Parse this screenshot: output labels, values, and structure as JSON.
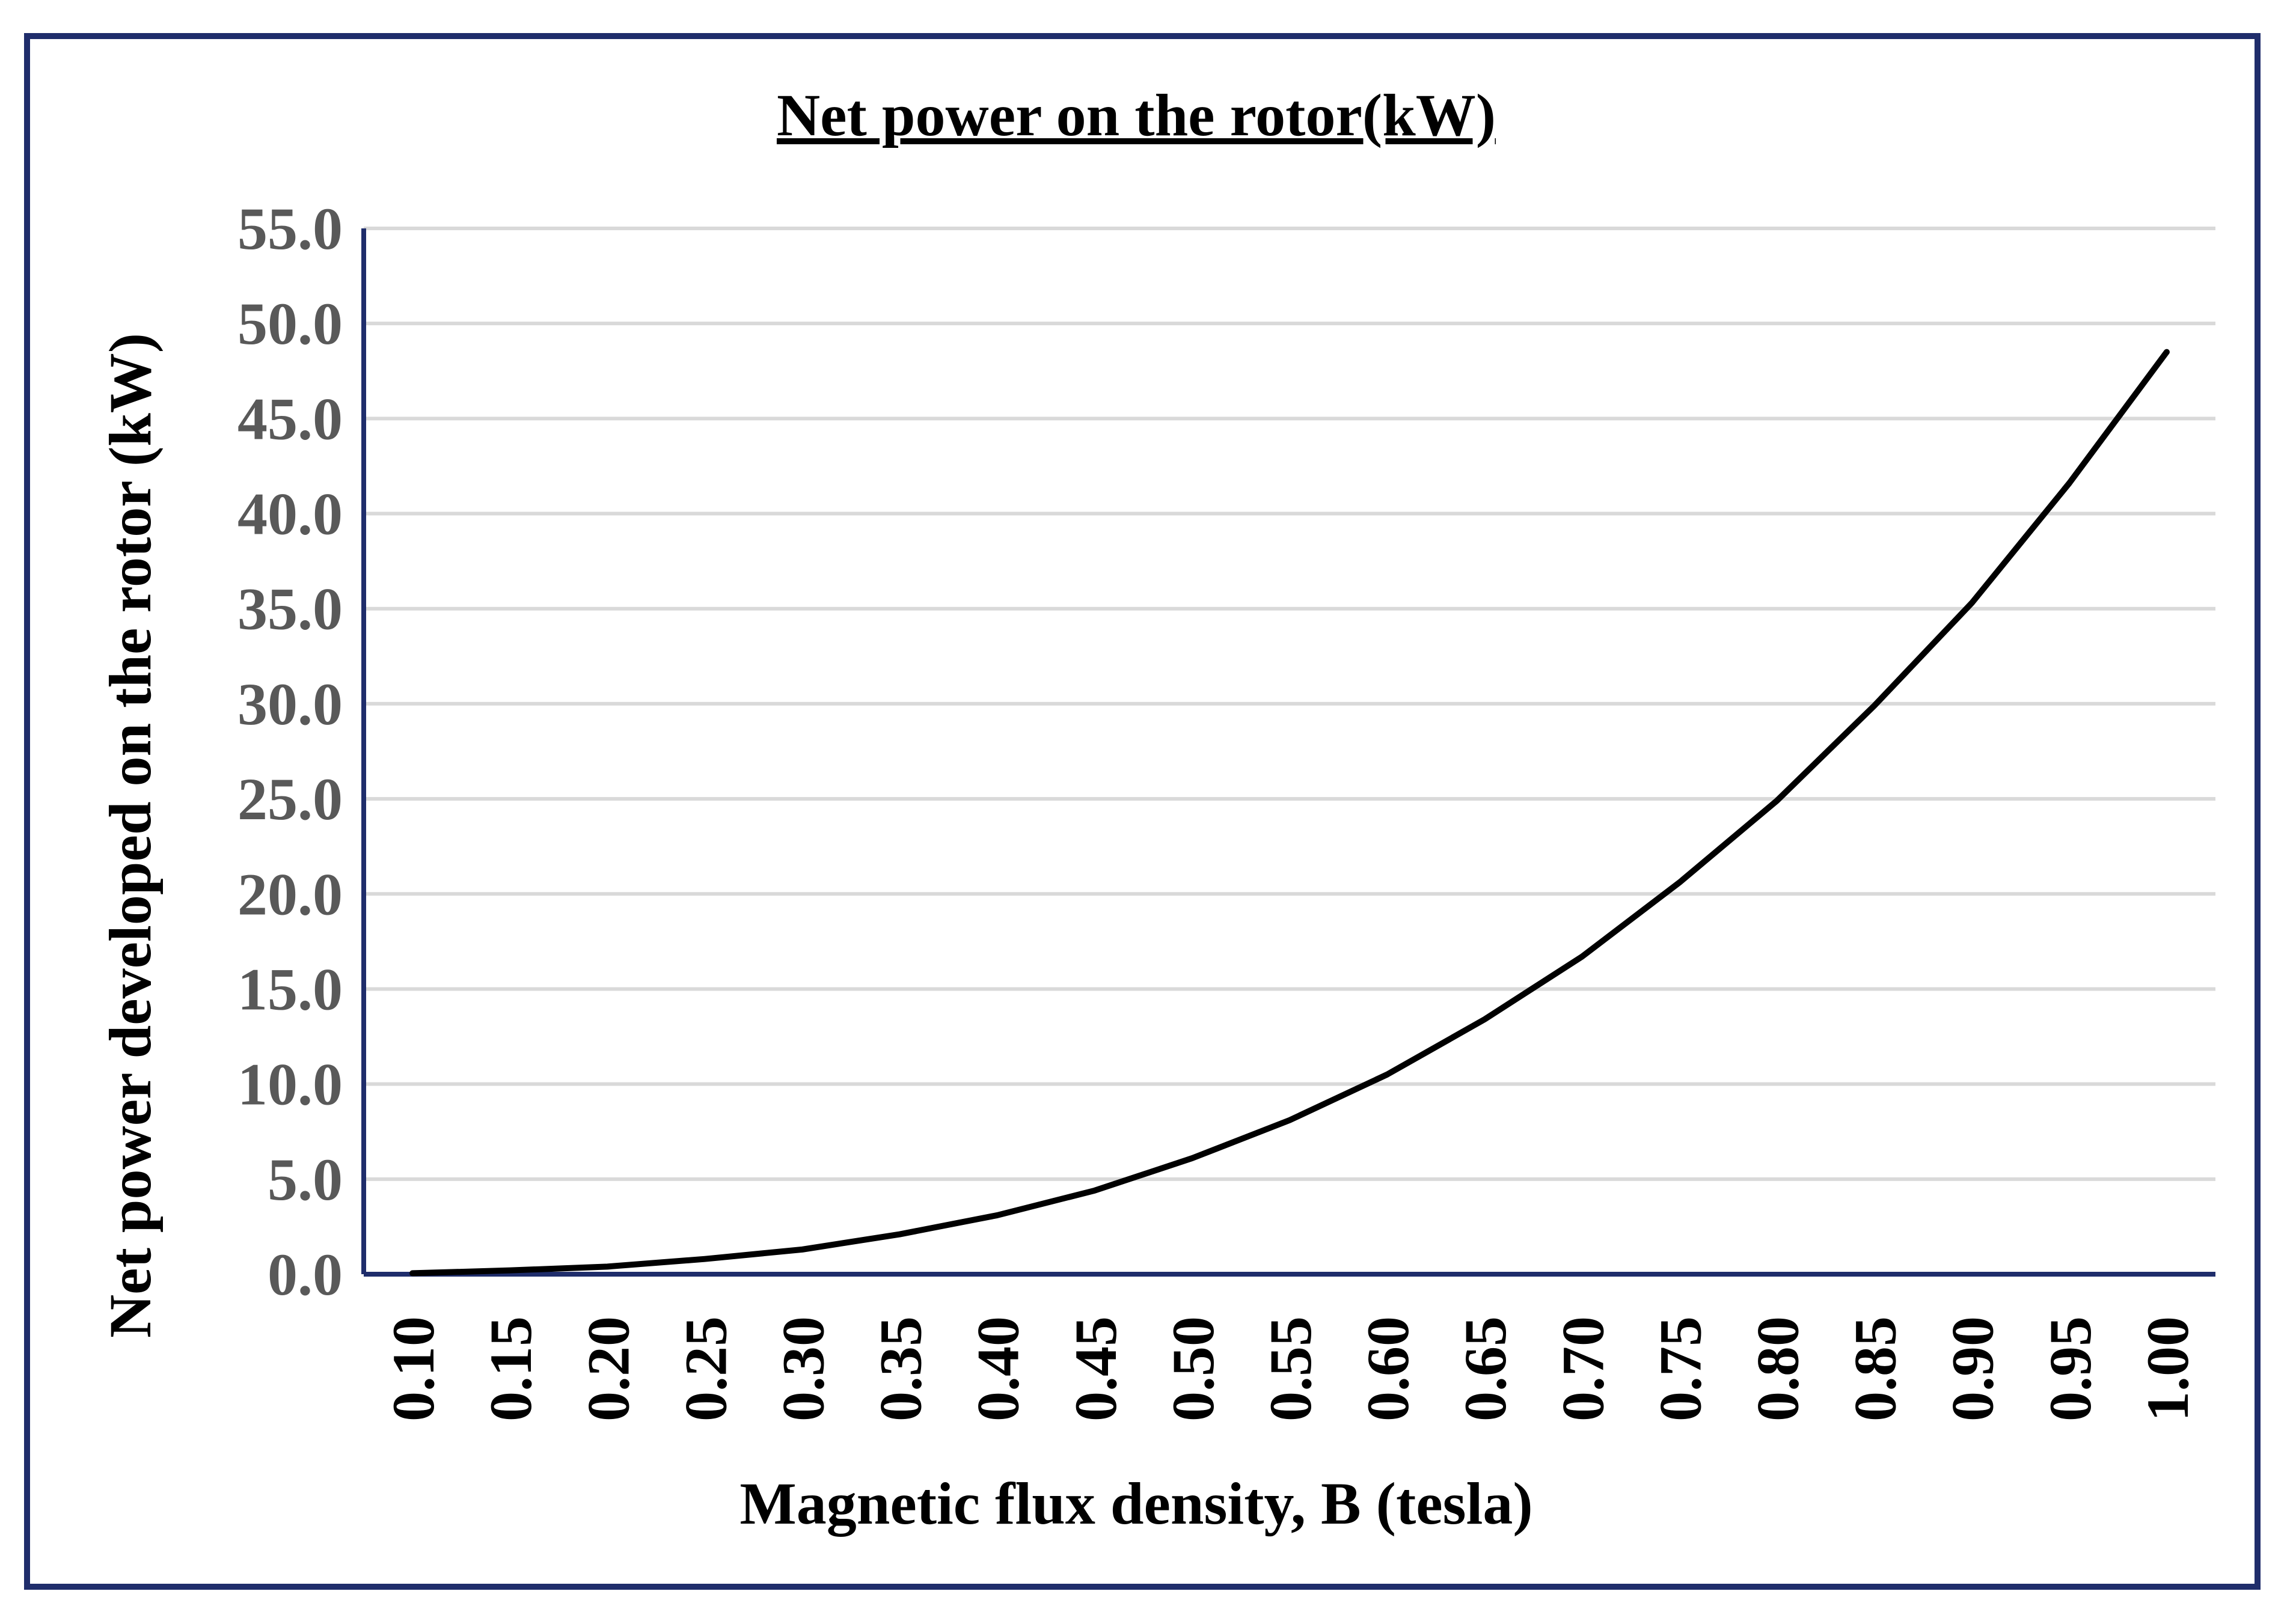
{
  "chart_data": {
    "type": "line",
    "title": "Net power on the rotor(kW)",
    "xlabel": "Magnetic flux density, B (tesla)",
    "ylabel": "Net power developed on the rotor (kW)",
    "ylim": [
      0,
      55
    ],
    "yticks": [
      "0.0",
      "5.0",
      "10.0",
      "15.0",
      "20.0",
      "25.0",
      "30.0",
      "35.0",
      "40.0",
      "45.0",
      "50.0",
      "55.0"
    ],
    "categories": [
      "0.10",
      "0.15",
      "0.20",
      "0.25",
      "0.30",
      "0.35",
      "0.40",
      "0.45",
      "0.50",
      "0.55",
      "0.60",
      "0.65",
      "0.70",
      "0.75",
      "0.80",
      "0.85",
      "0.90",
      "0.95",
      "1.00"
    ],
    "series": [
      {
        "name": "Net power on the rotor(kW)",
        "values": [
          0.05,
          0.2,
          0.4,
          0.8,
          1.3,
          2.1,
          3.1,
          4.4,
          6.1,
          8.1,
          10.5,
          13.4,
          16.7,
          20.6,
          24.9,
          29.9,
          35.3,
          41.6,
          48.5
        ]
      }
    ],
    "grid": true,
    "colors": {
      "line": "#000000",
      "grid": "#d9d9d9",
      "axis": "#1f2d6b",
      "frame": "#1f2d6b"
    }
  }
}
